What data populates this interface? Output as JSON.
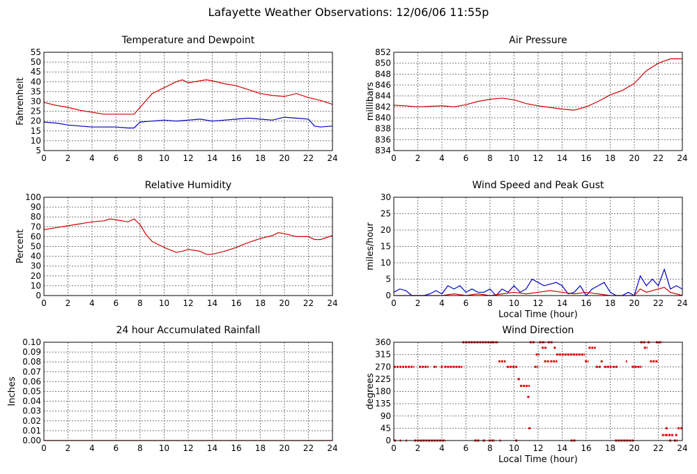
{
  "title": "Lafayette Weather Observations: 12/06/06 11:55p",
  "chart_data": [
    {
      "type": "line",
      "title": "Temperature and Dewpoint",
      "xlabel": "",
      "ylabel": "Fahrenheit",
      "xlim": [
        0,
        24
      ],
      "ylim": [
        5,
        55
      ],
      "xticks": [
        0,
        2,
        4,
        6,
        8,
        10,
        12,
        14,
        16,
        18,
        20,
        22,
        24
      ],
      "yticks": [
        5,
        10,
        15,
        20,
        25,
        30,
        35,
        40,
        45,
        50,
        55
      ],
      "grid": true,
      "series": [
        {
          "color": "#d00000",
          "x": [
            0,
            1,
            2,
            3,
            4,
            5,
            6,
            7,
            7.5,
            8,
            9,
            10,
            11,
            11.5,
            12,
            13,
            13.5,
            14,
            15,
            16,
            17,
            18,
            19,
            20,
            21,
            22,
            23,
            24
          ],
          "values": [
            29.5,
            28,
            27,
            25.5,
            24.5,
            23.5,
            23.5,
            23.5,
            23.5,
            27,
            34,
            37,
            40,
            41,
            39.5,
            40.5,
            41,
            40.5,
            39,
            38,
            36,
            34,
            33,
            32.5,
            34,
            32,
            30.5,
            28.5
          ]
        },
        {
          "color": "#0000c0",
          "x": [
            0,
            1,
            2,
            3,
            4,
            5,
            6,
            7,
            7.5,
            8,
            9,
            10,
            11,
            12,
            13,
            14,
            15,
            16,
            17,
            18,
            19,
            20,
            21,
            22,
            22.5,
            23,
            24
          ],
          "values": [
            19.5,
            19,
            18,
            17.5,
            17,
            17,
            17,
            16.5,
            16.5,
            19.5,
            20,
            20.5,
            20,
            20.5,
            21,
            20,
            20.5,
            21,
            21.5,
            21,
            20.5,
            22,
            21.5,
            21,
            17.5,
            17,
            17.5
          ]
        }
      ]
    },
    {
      "type": "line",
      "title": "Air Pressure",
      "xlabel": "",
      "ylabel": "millibars",
      "xlim": [
        0,
        24
      ],
      "ylim": [
        834,
        852
      ],
      "xticks": [
        0,
        2,
        4,
        6,
        8,
        10,
        12,
        14,
        16,
        18,
        20,
        22,
        24
      ],
      "yticks": [
        834,
        836,
        838,
        840,
        842,
        844,
        846,
        848,
        850,
        852
      ],
      "grid": true,
      "series": [
        {
          "color": "#d00000",
          "x": [
            0,
            1,
            2,
            3,
            4,
            5,
            6,
            7,
            8,
            9,
            10,
            11,
            12,
            13,
            14,
            15,
            16,
            17,
            18,
            19,
            20,
            21,
            22,
            23,
            24
          ],
          "values": [
            842.3,
            842.2,
            842,
            842.1,
            842.2,
            842,
            842.4,
            843,
            843.4,
            843.6,
            843.3,
            842.6,
            842.2,
            841.9,
            841.6,
            841.4,
            842,
            843,
            844.2,
            845,
            846.3,
            848.6,
            850,
            850.8,
            850.8
          ]
        }
      ]
    },
    {
      "type": "line",
      "title": "Relative Humidity",
      "xlabel": "",
      "ylabel": "Percent",
      "xlim": [
        0,
        24
      ],
      "ylim": [
        0,
        100
      ],
      "xticks": [
        0,
        2,
        4,
        6,
        8,
        10,
        12,
        14,
        16,
        18,
        20,
        22,
        24
      ],
      "yticks": [
        0,
        10,
        20,
        30,
        40,
        50,
        60,
        70,
        80,
        90,
        100
      ],
      "grid": true,
      "series": [
        {
          "color": "#d00000",
          "x": [
            0,
            1,
            2,
            3,
            4,
            5,
            5.5,
            6,
            7,
            7.5,
            8,
            8.5,
            9,
            10,
            11,
            11.5,
            12,
            13,
            13.5,
            14,
            15,
            16,
            17,
            18,
            19,
            19.5,
            20,
            21,
            22,
            22.5,
            23,
            24
          ],
          "values": [
            67,
            69,
            71,
            73,
            75,
            76,
            78,
            77,
            75,
            78,
            72,
            62,
            55,
            49,
            44,
            45,
            47,
            45,
            42,
            42,
            45,
            49,
            54,
            58,
            61,
            64,
            63,
            60,
            60,
            57,
            57,
            61
          ]
        }
      ]
    },
    {
      "type": "line",
      "title": "Wind Speed and Peak Gust",
      "xlabel": "Local Time (hour)",
      "ylabel": "miles/hour",
      "xlim": [
        0,
        24
      ],
      "ylim": [
        0,
        30
      ],
      "xticks": [
        0,
        2,
        4,
        6,
        8,
        10,
        12,
        14,
        16,
        18,
        20,
        22,
        24
      ],
      "yticks": [
        0,
        5,
        10,
        15,
        20,
        25,
        30
      ],
      "grid": true,
      "series": [
        {
          "color": "#0000c0",
          "x": [
            0,
            0.5,
            1,
            1.5,
            2,
            2.5,
            3,
            3.5,
            4,
            4.5,
            5,
            5.5,
            6,
            6.5,
            7,
            7.5,
            8,
            8.5,
            9,
            9.5,
            10,
            10.5,
            11,
            11.5,
            12,
            12.5,
            13,
            13.5,
            14,
            14.5,
            15,
            15.5,
            16,
            16.5,
            17,
            17.5,
            18,
            18.5,
            19,
            19.5,
            20,
            20.5,
            21,
            21.5,
            22,
            22.5,
            23,
            23.5,
            24
          ],
          "values": [
            1,
            2,
            1.5,
            0,
            0,
            0,
            0.5,
            1.5,
            0.5,
            3,
            2,
            3,
            1,
            2,
            1,
            1,
            2,
            0,
            2,
            1,
            3,
            1,
            2,
            5,
            4,
            3,
            3.5,
            4,
            3,
            0.5,
            1,
            3,
            0,
            2,
            3,
            4,
            1,
            0,
            0,
            1,
            0,
            6,
            3,
            5,
            3,
            8,
            2,
            3,
            2
          ]
        },
        {
          "color": "#d00000",
          "x": [
            0,
            1,
            2,
            3,
            4,
            5,
            6,
            7,
            8,
            9,
            10,
            11,
            12,
            13,
            14,
            15,
            16,
            17,
            18,
            19,
            20,
            20.5,
            21,
            22,
            22.5,
            23,
            24
          ],
          "values": [
            0,
            0,
            0,
            0,
            0,
            0.5,
            0,
            0.5,
            0,
            0.5,
            1,
            0.5,
            1,
            1.5,
            1,
            0.5,
            1,
            0.5,
            0,
            0,
            0,
            2,
            1,
            2,
            2.5,
            1,
            0
          ]
        }
      ]
    },
    {
      "type": "line",
      "title": "24 hour Accumulated Rainfall",
      "xlabel": "",
      "ylabel": "Inches",
      "xlim": [
        0,
        24
      ],
      "ylim": [
        0,
        0.1
      ],
      "xticks": [
        0,
        2,
        4,
        6,
        8,
        10,
        12,
        14,
        16,
        18,
        20,
        22,
        24
      ],
      "yticks": [
        "0.00",
        "0.01",
        "0.02",
        "0.03",
        "0.04",
        "0.05",
        "0.06",
        "0.07",
        "0.08",
        "0.09",
        "0.10"
      ],
      "grid": true,
      "series": [
        {
          "color": "#d00000",
          "x": [
            0,
            24
          ],
          "values": [
            0,
            0
          ]
        }
      ]
    },
    {
      "type": "scatter",
      "title": "Wind Direction",
      "xlabel": "Local Time (hour)",
      "ylabel": "degrees",
      "xlim": [
        0,
        24
      ],
      "ylim": [
        0,
        360
      ],
      "xticks": [
        0,
        2,
        4,
        6,
        8,
        10,
        12,
        14,
        16,
        18,
        20,
        22,
        24
      ],
      "yticks": [
        0,
        45,
        90,
        135,
        180,
        225,
        270,
        315,
        360
      ],
      "grid": true,
      "segments": [
        {
          "x0": 0,
          "x1": 1.7,
          "y": 270
        },
        {
          "x0": 0,
          "x1": 0.2,
          "y": 0
        },
        {
          "x0": 0.5,
          "x1": 0.6,
          "y": 0
        },
        {
          "x0": 1,
          "x1": 1.1,
          "y": 0
        },
        {
          "x0": 1.7,
          "x1": 4.3,
          "y": 0
        },
        {
          "x0": 2.1,
          "x1": 2.9,
          "y": 270
        },
        {
          "x0": 3.3,
          "x1": 3.6,
          "y": 270
        },
        {
          "x0": 3.9,
          "x1": 4.1,
          "y": 270
        },
        {
          "x0": 4.2,
          "x1": 5.7,
          "y": 270
        },
        {
          "x0": 5.7,
          "x1": 8.2,
          "y": 360
        },
        {
          "x0": 6.7,
          "x1": 7.1,
          "y": 0
        },
        {
          "x0": 7.4,
          "x1": 7.6,
          "y": 0
        },
        {
          "x0": 7.9,
          "x1": 8.4,
          "y": 0
        },
        {
          "x0": 8.8,
          "x1": 8.9,
          "y": 0
        },
        {
          "x0": 8.2,
          "x1": 8.7,
          "y": 360
        },
        {
          "x0": 8.7,
          "x1": 9.3,
          "y": 290
        },
        {
          "x0": 9.4,
          "x1": 10.3,
          "y": 270
        },
        {
          "x0": 10.1,
          "x1": 10.3,
          "y": 0
        },
        {
          "x0": 10.3,
          "x1": 10.5,
          "y": 225
        },
        {
          "x0": 10.5,
          "x1": 11.3,
          "y": 200
        },
        {
          "x0": 11.1,
          "x1": 11.3,
          "y": 160
        },
        {
          "x0": 11.2,
          "x1": 11.4,
          "y": 45
        },
        {
          "x0": 11.3,
          "x1": 11.7,
          "y": 360
        },
        {
          "x0": 11.7,
          "x1": 12,
          "y": 270
        },
        {
          "x0": 11.8,
          "x1": 12.1,
          "y": 315
        },
        {
          "x0": 12.1,
          "x1": 12.6,
          "y": 360
        },
        {
          "x0": 12.3,
          "x1": 12.7,
          "y": 340
        },
        {
          "x0": 12.5,
          "x1": 12.9,
          "y": 290
        },
        {
          "x0": 12.8,
          "x1": 13.2,
          "y": 360
        },
        {
          "x0": 13,
          "x1": 13.6,
          "y": 290
        },
        {
          "x0": 13.3,
          "x1": 13.5,
          "y": 340
        },
        {
          "x0": 13.5,
          "x1": 15.9,
          "y": 315
        },
        {
          "x0": 14.7,
          "x1": 15.1,
          "y": 0
        },
        {
          "x0": 15.9,
          "x1": 16.2,
          "y": 290
        },
        {
          "x0": 16.2,
          "x1": 16.8,
          "y": 340
        },
        {
          "x0": 16.8,
          "x1": 17.2,
          "y": 270
        },
        {
          "x0": 17.2,
          "x1": 17.4,
          "y": 290
        },
        {
          "x0": 17.5,
          "x1": 18.1,
          "y": 270
        },
        {
          "x0": 18.2,
          "x1": 18.6,
          "y": 270
        },
        {
          "x0": 18.4,
          "x1": 20,
          "y": 0
        },
        {
          "x0": 19.3,
          "x1": 19.4,
          "y": 290
        },
        {
          "x0": 19.8,
          "x1": 20.6,
          "y": 270
        },
        {
          "x0": 20.5,
          "x1": 20.9,
          "y": 360
        },
        {
          "x0": 20.8,
          "x1": 21.1,
          "y": 340
        },
        {
          "x0": 21.1,
          "x1": 21.3,
          "y": 360
        },
        {
          "x0": 21.3,
          "x1": 22.0,
          "y": 290
        },
        {
          "x0": 21.8,
          "x1": 22.3,
          "y": 360
        },
        {
          "x0": 22.3,
          "x1": 22.6,
          "y": 20
        },
        {
          "x0": 22.6,
          "x1": 22.8,
          "y": 45
        },
        {
          "x0": 22.6,
          "x1": 23.3,
          "y": 20
        },
        {
          "x0": 22.9,
          "x1": 23.1,
          "y": 0
        },
        {
          "x0": 23.3,
          "x1": 23.6,
          "y": 0
        },
        {
          "x0": 23.4,
          "x1": 23.6,
          "y": 20
        },
        {
          "x0": 23.6,
          "x1": 24,
          "y": 45
        }
      ],
      "color": "#e00000"
    }
  ]
}
